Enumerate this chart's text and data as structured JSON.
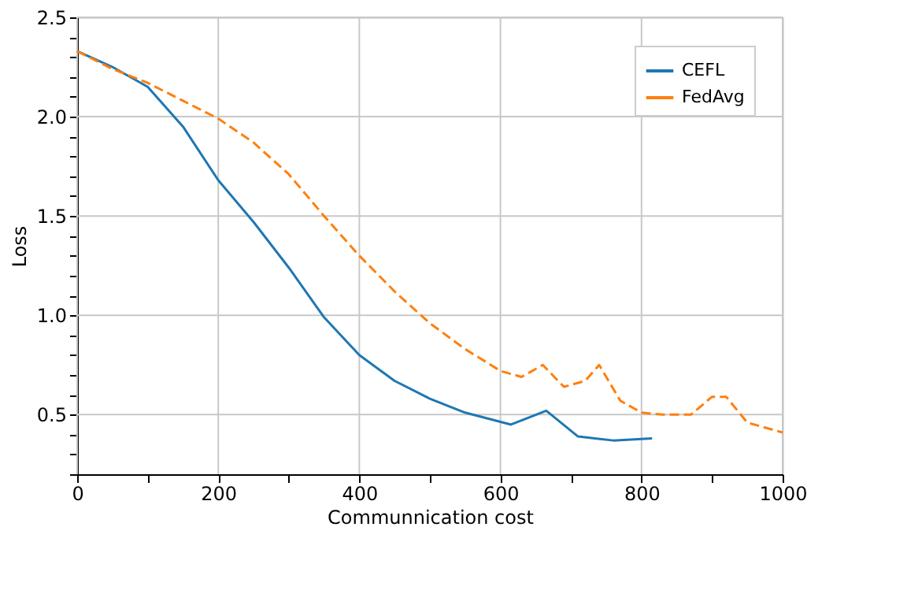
{
  "chart_data": {
    "type": "line",
    "xlabel": "Communnication cost",
    "ylabel": "Loss",
    "xlim": [
      0,
      1000
    ],
    "ylim": [
      0.2,
      2.5
    ],
    "xticks": [
      0,
      {
        "value": 100,
        "label": null
      },
      200,
      {
        "value": 300,
        "label": null
      },
      400,
      {
        "value": 500,
        "label": null
      },
      600,
      {
        "value": 700,
        "label": null
      },
      800,
      {
        "value": 900,
        "label": null
      },
      1000
    ],
    "yticks": [
      {
        "value": 0.2,
        "label": null
      },
      {
        "value": 0.3,
        "label": null
      },
      {
        "value": 0.4,
        "label": null
      },
      0.5,
      {
        "value": 0.6,
        "label": null
      },
      {
        "value": 0.7,
        "label": null
      },
      {
        "value": 0.8,
        "label": null
      },
      {
        "value": 0.9,
        "label": null
      },
      {
        "value": 1.0,
        "label": "1.0"
      },
      {
        "value": 1.1,
        "label": null
      },
      {
        "value": 1.2,
        "label": null
      },
      {
        "value": 1.3,
        "label": null
      },
      {
        "value": 1.4,
        "label": null
      },
      1.5,
      {
        "value": 1.6,
        "label": null
      },
      {
        "value": 1.7,
        "label": null
      },
      {
        "value": 1.8,
        "label": null
      },
      {
        "value": 1.9,
        "label": null
      },
      {
        "value": 2.0,
        "label": "2.0"
      },
      {
        "value": 2.1,
        "label": null
      },
      {
        "value": 2.2,
        "label": null
      },
      {
        "value": 2.3,
        "label": null
      },
      {
        "value": 2.4,
        "label": null
      },
      2.5
    ],
    "grid": true,
    "legend": "top right",
    "series": [
      {
        "name": "CEFL",
        "color": "#1f77b4",
        "line_style": "solid",
        "x": [
          0,
          50,
          100,
          150,
          200,
          250,
          300,
          350,
          400,
          450,
          500,
          550,
          615,
          665,
          710,
          760,
          815
        ],
        "values": [
          2.33,
          2.25,
          2.15,
          1.95,
          1.68,
          1.47,
          1.24,
          0.99,
          0.8,
          0.67,
          0.58,
          0.51,
          0.45,
          0.52,
          0.39,
          0.37,
          0.38
        ]
      },
      {
        "name": "FedAvg",
        "color": "#ff7f0e",
        "line_style": "dashed",
        "x": [
          0,
          50,
          100,
          150,
          200,
          250,
          300,
          350,
          400,
          450,
          500,
          550,
          600,
          630,
          660,
          690,
          720,
          740,
          770,
          800,
          830,
          870,
          900,
          920,
          950,
          1000
        ],
        "values": [
          2.33,
          2.24,
          2.17,
          2.08,
          1.99,
          1.87,
          1.71,
          1.5,
          1.3,
          1.12,
          0.96,
          0.83,
          0.72,
          0.69,
          0.75,
          0.64,
          0.67,
          0.75,
          0.57,
          0.51,
          0.5,
          0.5,
          0.59,
          0.59,
          0.46,
          0.41
        ]
      }
    ]
  }
}
